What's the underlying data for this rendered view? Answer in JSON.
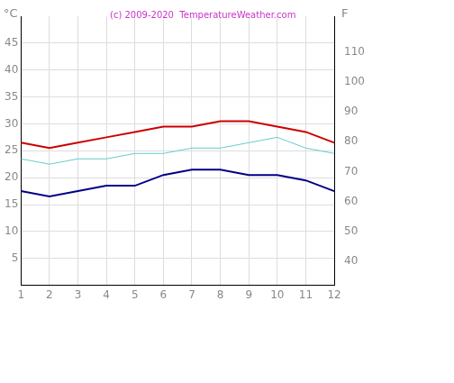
{
  "chart_data": {
    "type": "line",
    "title": "(c) 2009-2020  TemperatureWeather.com",
    "ylabel": "°C",
    "y2label": "F",
    "x": [
      1,
      2,
      3,
      4,
      5,
      6,
      7,
      8,
      9,
      10,
      11,
      12
    ],
    "xlim": [
      1,
      12
    ],
    "xticks": [
      1,
      2,
      3,
      4,
      5,
      6,
      7,
      8,
      9,
      10,
      11,
      12
    ],
    "ylim": [
      0,
      50
    ],
    "yticks": [
      5,
      10,
      15,
      20,
      25,
      30,
      35,
      40,
      45
    ],
    "y2lim": [
      32,
      122
    ],
    "y2ticks": [
      40,
      50,
      60,
      70,
      80,
      90,
      100,
      110
    ],
    "grid": true,
    "series": [
      {
        "color": "#cc0000",
        "values": [
          26.5,
          25.5,
          26.5,
          27.5,
          28.5,
          29.5,
          29.5,
          30.5,
          30.5,
          29.5,
          28.5,
          26.5
        ]
      },
      {
        "color": "#66cccc",
        "values": [
          23.5,
          22.5,
          23.5,
          23.5,
          24.5,
          24.5,
          25.5,
          25.5,
          26.5,
          27.5,
          25.5,
          24.5
        ]
      },
      {
        "color": "#000088",
        "values": [
          17.5,
          16.5,
          17.5,
          18.5,
          18.5,
          20.5,
          21.5,
          21.5,
          20.5,
          20.5,
          19.5,
          17.5
        ]
      }
    ]
  }
}
